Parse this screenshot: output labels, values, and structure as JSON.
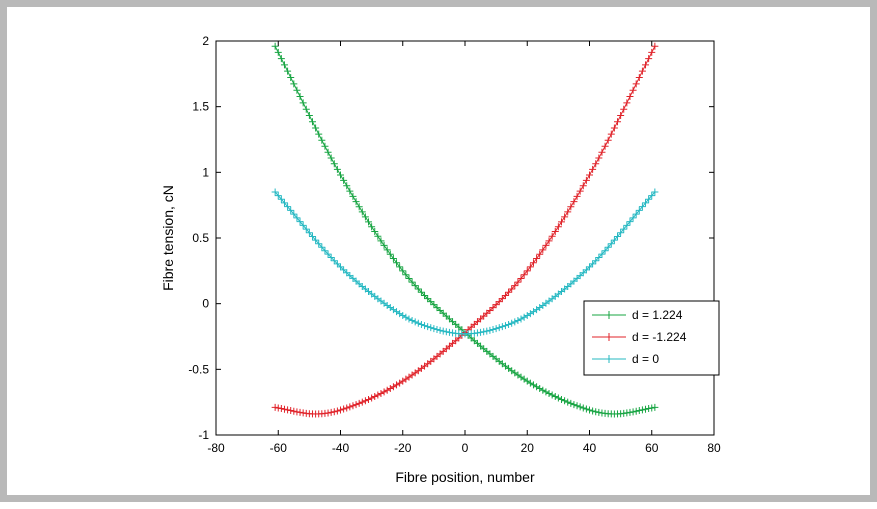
{
  "chart_data": {
    "type": "line",
    "title": "",
    "xlabel": "Fibre position, number",
    "ylabel": "Fibre tension, cN",
    "xlim": [
      -80,
      80
    ],
    "ylim": [
      -1,
      2
    ],
    "xticks": [
      "-80",
      "-60",
      "-40",
      "-20",
      "0",
      "20",
      "40",
      "60",
      "80"
    ],
    "yticks": [
      "-1",
      "-0.5",
      "0",
      "0.5",
      "1",
      "1.5",
      "2"
    ],
    "grid": false,
    "legend_position": "right",
    "marker": "+",
    "x_range": [
      -61,
      61
    ],
    "x_step": 1,
    "series": [
      {
        "name": "d = 1.224",
        "color": "#17a442",
        "control_points": [
          [
            -61,
            1.96
          ],
          [
            -40,
            0.98
          ],
          [
            -20,
            0.25
          ],
          [
            0,
            -0.22
          ],
          [
            20,
            -0.59
          ],
          [
            40,
            -0.81
          ],
          [
            48,
            -0.84
          ],
          [
            61,
            -0.79
          ]
        ]
      },
      {
        "name": "d = -1.224",
        "color": "#e0232a",
        "control_points": [
          [
            -61,
            -0.79
          ],
          [
            -48,
            -0.84
          ],
          [
            -40,
            -0.81
          ],
          [
            -20,
            -0.59
          ],
          [
            0,
            -0.22
          ],
          [
            20,
            0.25
          ],
          [
            40,
            0.98
          ],
          [
            61,
            1.96
          ]
        ]
      },
      {
        "name": "d = 0",
        "color": "#25b8c2",
        "control_points": [
          [
            -61,
            0.85
          ],
          [
            -40,
            0.28
          ],
          [
            -20,
            -0.09
          ],
          [
            -10,
            -0.19
          ],
          [
            0,
            -0.23
          ],
          [
            10,
            -0.19
          ],
          [
            20,
            -0.09
          ],
          [
            40,
            0.28
          ],
          [
            61,
            0.85
          ]
        ]
      }
    ]
  }
}
